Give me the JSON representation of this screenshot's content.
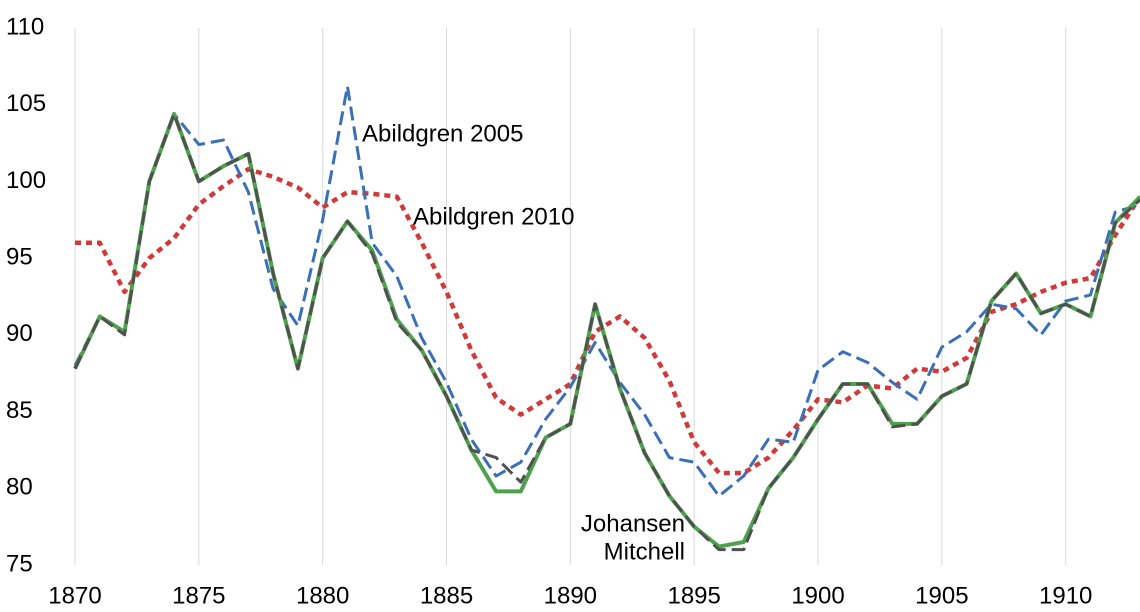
{
  "chart_data": {
    "type": "line",
    "x": [
      1870,
      1871,
      1872,
      1873,
      1874,
      1875,
      1876,
      1877,
      1878,
      1879,
      1880,
      1881,
      1882,
      1883,
      1884,
      1885,
      1886,
      1887,
      1888,
      1889,
      1890,
      1891,
      1892,
      1893,
      1894,
      1895,
      1896,
      1897,
      1898,
      1899,
      1900,
      1901,
      1902,
      1903,
      1904,
      1905,
      1906,
      1907,
      1908,
      1909,
      1910,
      1911,
      1912,
      1913
    ],
    "series": [
      {
        "name": "Abildgren 2010",
        "color": "#d03a3a",
        "style": "dotted",
        "values": [
          96,
          96,
          92.8,
          95,
          96.3,
          98.5,
          99.7,
          100.8,
          100.3,
          99.6,
          98.3,
          99.3,
          99.2,
          99,
          96,
          92.8,
          89,
          85.9,
          84.8,
          85.8,
          86.8,
          90.2,
          91.2,
          89.8,
          87,
          83,
          81,
          81,
          82,
          83.8,
          85.8,
          85.6,
          86.7,
          86.5,
          87.8,
          87.6,
          88.5,
          91.5,
          92,
          92.8,
          93.4,
          93.7,
          96.5,
          99
        ]
      },
      {
        "name": "Abildgren 2005",
        "color": "#3b6fb6",
        "style": "dashed",
        "values": [
          88,
          91.2,
          90.2,
          100,
          104.4,
          102.4,
          102.7,
          99.3,
          93,
          90.6,
          97.5,
          106.2,
          96,
          93.8,
          89.8,
          86.9,
          83.2,
          80.8,
          81.7,
          84.5,
          86.6,
          89.5,
          86.9,
          84.8,
          82,
          81.7,
          79.5,
          80.8,
          83.2,
          83,
          87.7,
          88.9,
          88.2,
          86.9,
          85.8,
          89.2,
          90.2,
          92,
          91.7,
          90,
          92.2,
          92.6,
          98,
          98.5
        ]
      },
      {
        "name": "Mitchell",
        "color": "#4ea24e",
        "style": "solid",
        "values": [
          87.8,
          91.2,
          90.2,
          100,
          104.4,
          100,
          101,
          101.8,
          94,
          87.8,
          95,
          97.4,
          95.5,
          91,
          89,
          86,
          82.5,
          79.8,
          79.8,
          83.3,
          84.2,
          92,
          86.5,
          82.3,
          79.5,
          77.5,
          76.2,
          76.5,
          80,
          82,
          84.5,
          86.8,
          86.8,
          84.2,
          84.2,
          86,
          86.8,
          92.2,
          94,
          91.4,
          92,
          91.2,
          97.3,
          99
        ]
      },
      {
        "name": "Johansen",
        "color": "#505050",
        "style": "dashed",
        "values": [
          87.8,
          91.2,
          90,
          100,
          104.4,
          100,
          101,
          101.8,
          94,
          87.8,
          95,
          97.4,
          95.3,
          90.8,
          89,
          86,
          82.5,
          82,
          80.4,
          83.3,
          84.2,
          92,
          86.5,
          82.3,
          79.5,
          77.5,
          76,
          76,
          80,
          82,
          84.5,
          86.8,
          86.8,
          84,
          84.2,
          86,
          86.8,
          92.2,
          94,
          91.4,
          92,
          91.2,
          97.3,
          98.8
        ]
      }
    ],
    "xlim": [
      1870,
      1913
    ],
    "xticks": [
      1870,
      1875,
      1880,
      1885,
      1890,
      1895,
      1900,
      1905,
      1910
    ],
    "ylim": [
      75,
      110
    ],
    "yticks": [
      75,
      80,
      85,
      90,
      95,
      100,
      105,
      110
    ],
    "grid": "x"
  }
}
